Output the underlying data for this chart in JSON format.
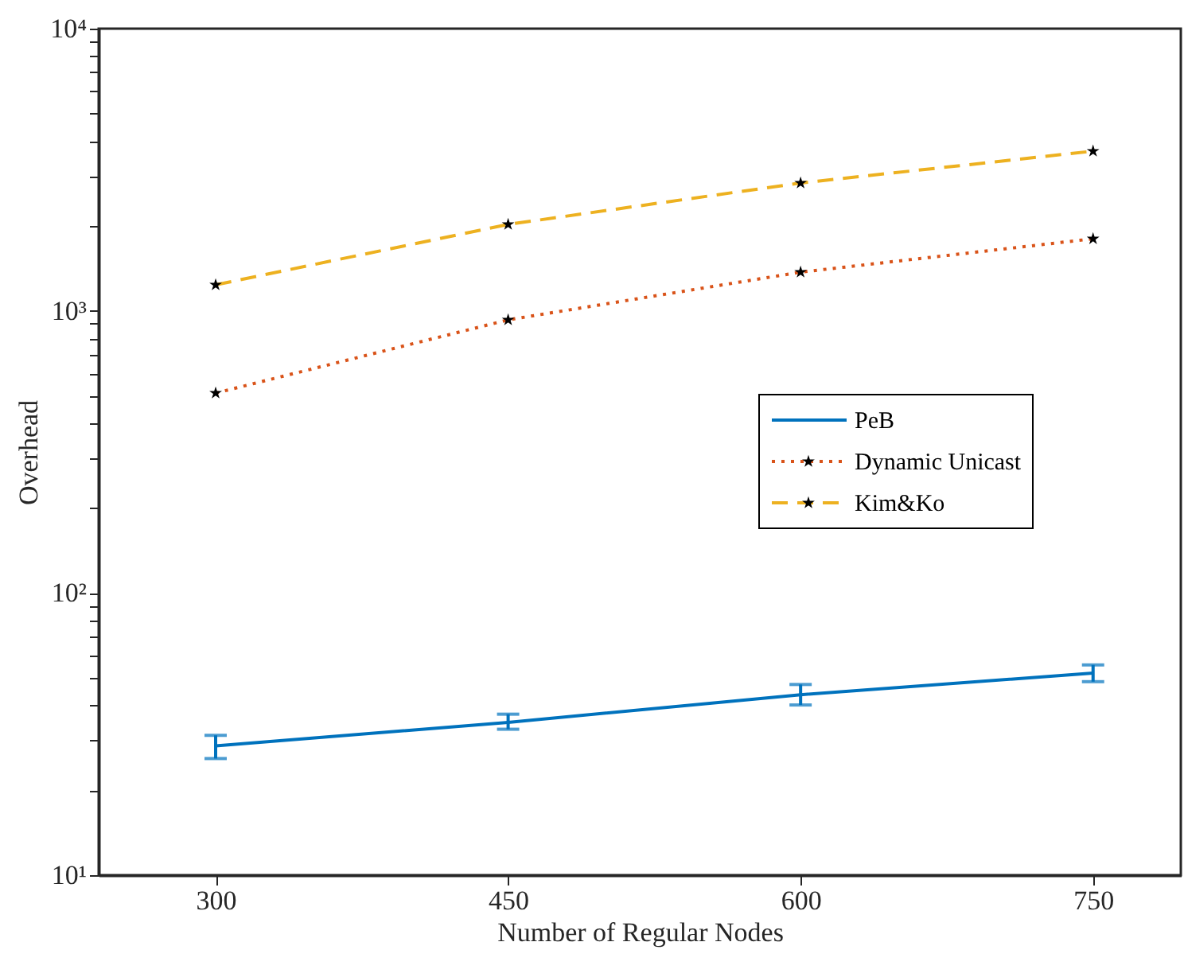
{
  "chart_data": {
    "type": "line",
    "xlabel": "Number of Regular Nodes",
    "ylabel": "Overhead",
    "x": [
      300,
      450,
      600,
      750
    ],
    "xlim": [
      240,
      795
    ],
    "xticks": [
      300,
      450,
      600,
      750
    ],
    "log": true,
    "ylim": [
      10,
      10000
    ],
    "yticks": [
      {
        "value": 10,
        "label": "10¹"
      },
      {
        "value": 20,
        "label": null
      },
      {
        "value": 30,
        "label": null
      },
      {
        "value": 40,
        "label": null
      },
      {
        "value": 50,
        "label": null
      },
      {
        "value": 60,
        "label": null
      },
      {
        "value": 70,
        "label": null
      },
      {
        "value": 80,
        "label": null
      },
      {
        "value": 90,
        "label": null
      },
      {
        "value": 100,
        "label": "10²"
      },
      {
        "value": 200,
        "label": null
      },
      {
        "value": 300,
        "label": null
      },
      {
        "value": 400,
        "label": null
      },
      {
        "value": 500,
        "label": null
      },
      {
        "value": 600,
        "label": null
      },
      {
        "value": 700,
        "label": null
      },
      {
        "value": 800,
        "label": null
      },
      {
        "value": 900,
        "label": null
      },
      {
        "value": 1000,
        "label": "10³"
      },
      {
        "value": 2000,
        "label": null
      },
      {
        "value": 3000,
        "label": null
      },
      {
        "value": 4000,
        "label": null
      },
      {
        "value": 5000,
        "label": null
      },
      {
        "value": 6000,
        "label": null
      },
      {
        "value": 7000,
        "label": null
      },
      {
        "value": 8000,
        "label": null
      },
      {
        "value": 9000,
        "label": null
      },
      {
        "value": 10000,
        "label": "10⁴"
      }
    ],
    "grid": false,
    "legend": "right",
    "series": [
      {
        "name": "PeB",
        "color": "#0072bd",
        "line_style": "solid",
        "marker": "none",
        "values": [
          28.7,
          34.8,
          43.6,
          52
        ],
        "errors": [
          [
            25.9,
            31.3
          ],
          [
            32.9,
            37.2
          ],
          [
            40.1,
            47.4
          ],
          [
            48.5,
            55.6
          ]
        ]
      },
      {
        "name": "Dynamic Unicast",
        "color": "#d95319",
        "line_style": "dotted",
        "marker": "star",
        "values": [
          511,
          929,
          1371,
          1800
        ]
      },
      {
        "name": "Kim&Ko",
        "color": "#edb120",
        "line_style": "dashed",
        "marker": "star",
        "values": [
          1236,
          2024,
          2838,
          3680
        ]
      }
    ]
  }
}
